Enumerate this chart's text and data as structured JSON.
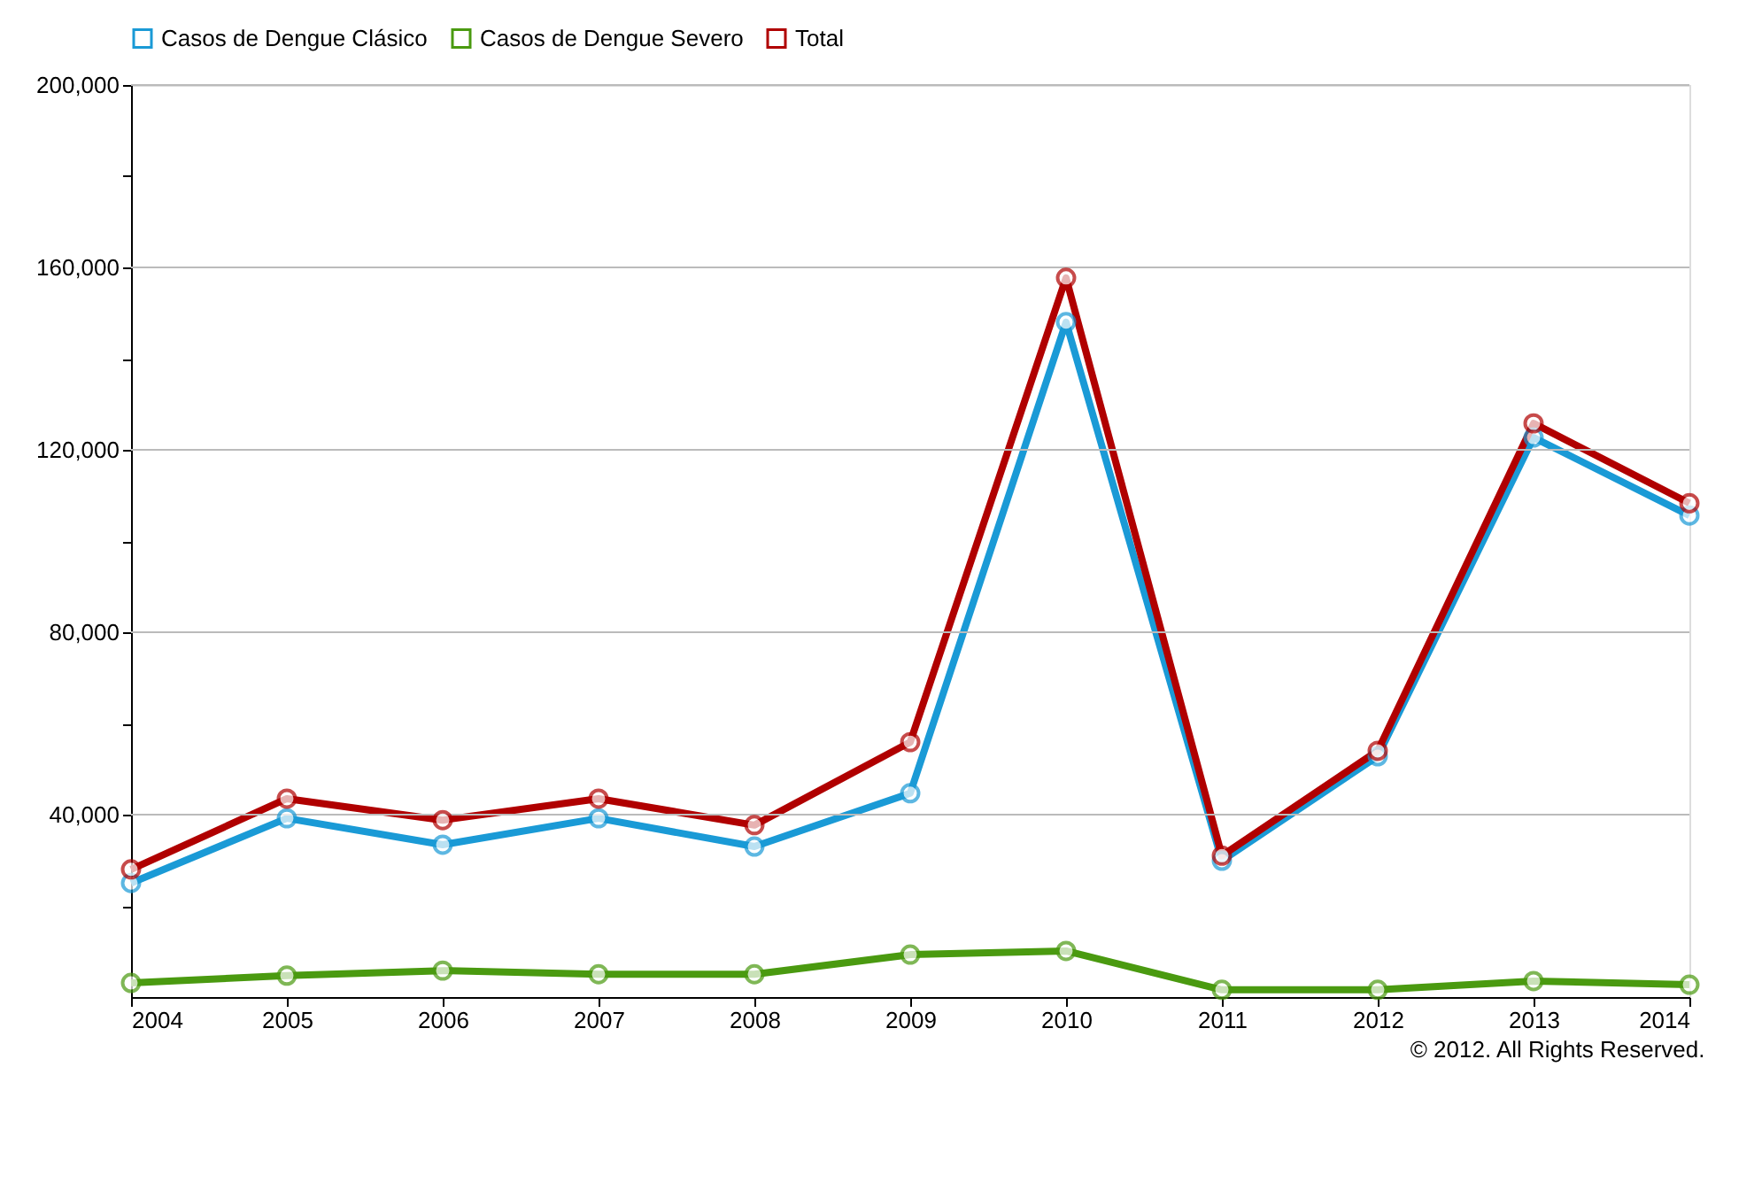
{
  "chart_data": {
    "type": "line",
    "categories": [
      "2004",
      "2005",
      "2006",
      "2007",
      "2008",
      "2009",
      "2010",
      "2011",
      "2012",
      "2013",
      "2014"
    ],
    "series": [
      {
        "name": "Casos de Dengue Clásico",
        "color": "#1a9ad6",
        "values": [
          25000,
          39200,
          33400,
          39200,
          33000,
          44700,
          148000,
          29900,
          52800,
          122700,
          105600
        ]
      },
      {
        "name": "Casos de Dengue Severo",
        "color": "#4a9a10",
        "values": [
          3100,
          4700,
          5800,
          5000,
          5000,
          9300,
          10100,
          1600,
          1600,
          3500,
          2700
        ]
      },
      {
        "name": "Total",
        "color": "#b00000",
        "values": [
          28000,
          43500,
          38800,
          43500,
          37700,
          55900,
          157700,
          31000,
          54000,
          125800,
          108300
        ]
      }
    ],
    "ylim": [
      0,
      200000
    ],
    "yticks": [
      {
        "value": 20000,
        "label": null
      },
      "40,000",
      {
        "value": 60000,
        "label": null
      },
      {
        "value": 80000,
        "label": "80,000"
      },
      {
        "value": 100000,
        "label": null
      },
      {
        "value": 120000,
        "label": "120,000"
      },
      {
        "value": 140000,
        "label": null
      },
      {
        "value": 160000,
        "label": "160,000"
      },
      {
        "value": 180000,
        "label": null
      },
      {
        "value": 200000,
        "label": "200,000"
      }
    ],
    "grid": "y",
    "legend": "top",
    "marker": "circle",
    "line_style": "solid",
    "annotations": [
      "© 2012. All Rights Reserved."
    ]
  }
}
